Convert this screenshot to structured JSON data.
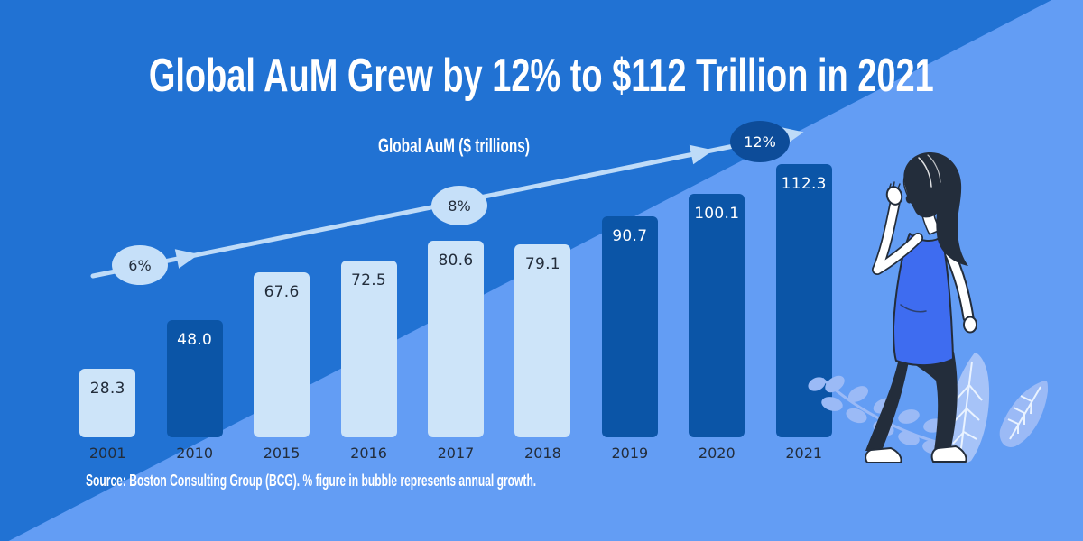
{
  "page": {
    "title": "Global AuM Grew by 12% to $112 Trillion in 2021",
    "source_note": "Source: Boston Consulting Group (BCG). % figure in bubble represents annual growth."
  },
  "chart_data": {
    "type": "bar",
    "title": "Global AuM ($ trillions)",
    "categories": [
      "2001",
      "2010",
      "2015",
      "2016",
      "2017",
      "2018",
      "2019",
      "2020",
      "2021"
    ],
    "values": [
      28.3,
      48.0,
      67.6,
      72.5,
      80.6,
      79.1,
      90.7,
      100.1,
      112.3
    ],
    "value_labels": [
      "28.3",
      "48.0",
      "67.6",
      "72.5",
      "80.6",
      "79.1",
      "90.7",
      "100.1",
      "112.3"
    ],
    "bar_styles": [
      "light",
      "dark",
      "light",
      "light",
      "light",
      "light",
      "dark",
      "dark",
      "dark"
    ],
    "ylim": [
      0,
      120
    ],
    "grid": false,
    "legend": false,
    "annotations": [
      {
        "text": "6%",
        "style": "light"
      },
      {
        "text": "8%",
        "style": "light"
      },
      {
        "text": "12%",
        "style": "dark"
      }
    ]
  },
  "colors": {
    "background_dark": "#2172d3",
    "background_light": "#639df4",
    "bar_dark": "#0b55a7",
    "bar_light": "#cde4f9",
    "arrow": "#bedbf8",
    "bubble_light_fill": "#c6e0f9",
    "bubble_dark_fill": "#0d4c99",
    "text_dark": "#232d3b",
    "illustration_ink": "#232d3b",
    "illustration_accent": "#3e6cf0",
    "leaf_light": "#9bbaf6",
    "leaf_big": "#a6c3f8"
  }
}
